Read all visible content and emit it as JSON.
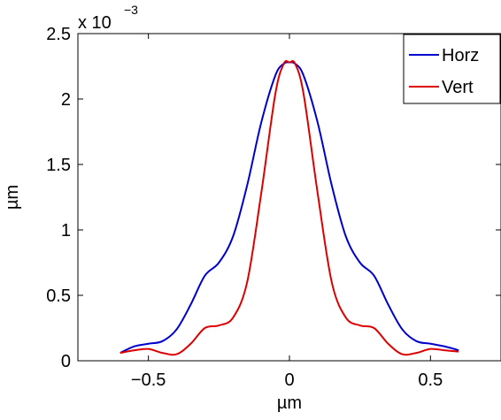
{
  "chart_data": {
    "type": "line",
    "title": "",
    "xlabel": "µm",
    "ylabel": "µm",
    "y_scale_label": "x 10",
    "y_scale_exponent": "−3",
    "xlim": [
      -0.75,
      0.75
    ],
    "ylim": [
      0,
      2.5
    ],
    "xticks": [
      -0.5,
      0,
      0.5
    ],
    "xtick_labels": [
      "−0.5",
      "0",
      "0.5"
    ],
    "yticks": [
      0,
      0.5,
      1,
      1.5,
      2,
      2.5
    ],
    "ytick_labels": [
      "0",
      "0.5",
      "1",
      "1.5",
      "2",
      "2.5"
    ],
    "grid": false,
    "legend_position": "top-right",
    "series": [
      {
        "name": "Horz",
        "color": "#0000cc",
        "x": [
          -0.6,
          -0.55,
          -0.5,
          -0.45,
          -0.4,
          -0.35,
          -0.3,
          -0.25,
          -0.2,
          -0.15,
          -0.1,
          -0.05,
          -0.02,
          0,
          0.02,
          0.05,
          0.1,
          0.15,
          0.2,
          0.25,
          0.3,
          0.35,
          0.4,
          0.45,
          0.5,
          0.55,
          0.6
        ],
        "values": [
          0.06,
          0.11,
          0.13,
          0.15,
          0.24,
          0.43,
          0.65,
          0.75,
          0.95,
          1.34,
          1.82,
          2.18,
          2.27,
          2.28,
          2.27,
          2.18,
          1.82,
          1.34,
          0.95,
          0.75,
          0.65,
          0.43,
          0.24,
          0.15,
          0.13,
          0.11,
          0.08
        ]
      },
      {
        "name": "Vert",
        "color": "#dd0000",
        "x": [
          -0.6,
          -0.55,
          -0.5,
          -0.45,
          -0.4,
          -0.35,
          -0.3,
          -0.25,
          -0.2,
          -0.15,
          -0.1,
          -0.05,
          -0.02,
          0,
          0.02,
          0.05,
          0.1,
          0.15,
          0.2,
          0.25,
          0.3,
          0.35,
          0.4,
          0.45,
          0.5,
          0.55,
          0.6
        ],
        "values": [
          0.06,
          0.08,
          0.09,
          0.06,
          0.05,
          0.13,
          0.25,
          0.27,
          0.33,
          0.6,
          1.28,
          2.04,
          2.27,
          2.28,
          2.27,
          2.04,
          1.28,
          0.6,
          0.33,
          0.27,
          0.25,
          0.13,
          0.05,
          0.06,
          0.09,
          0.08,
          0.07
        ]
      }
    ]
  }
}
